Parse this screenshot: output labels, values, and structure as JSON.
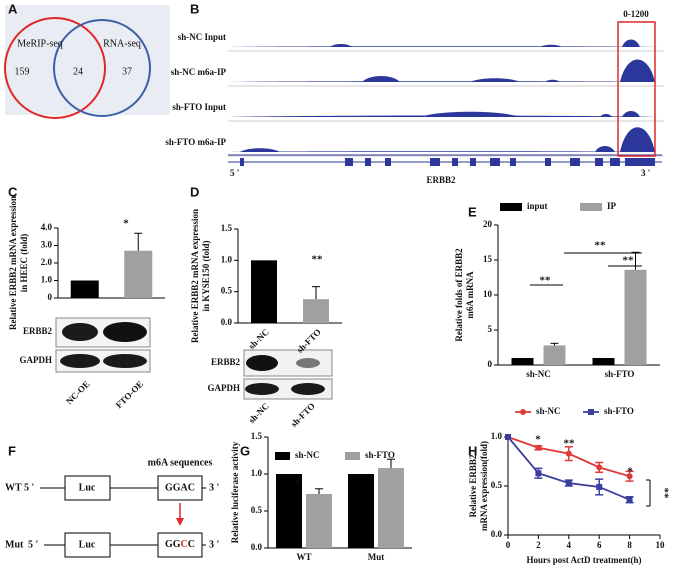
{
  "panel_labels": [
    "A",
    "B",
    "C",
    "D",
    "E",
    "F",
    "G",
    "H"
  ],
  "venn": {
    "sets": [
      "MeRIP-seq",
      "RNA-seq"
    ],
    "counts": [
      159,
      24,
      37
    ]
  },
  "tracks": {
    "labels": [
      "sh-NC  Input",
      "sh-NC  m6a-IP",
      "sh-FTO  Input",
      "sh-FTO  m6a-IP"
    ],
    "scale": "0-1200",
    "gene": "ERBB2",
    "five": "5 '",
    "three": "3 '"
  },
  "blots": {
    "C": {
      "rows": [
        "ERBB2",
        "GAPDH"
      ]
    },
    "D": {
      "rows": [
        "ERBB2",
        "GAPDH"
      ],
      "lanes": [
        "sh-NC",
        "sh-FTO"
      ]
    }
  },
  "diagram": {
    "title": "m6A sequences",
    "rows": [
      {
        "name": "WT",
        "five": "5 '",
        "box1": "Luc",
        "box2": [
          "GGAC"
        ],
        "three": "3 '"
      },
      {
        "name": "Mut",
        "five": "5 '",
        "box1": "Luc",
        "box2": [
          "GG",
          "C",
          "C"
        ],
        "three": "3 '"
      }
    ]
  },
  "chart_data": [
    {
      "type": "bar",
      "categories": [
        "NC-OE",
        "FTO-OE"
      ],
      "values": [
        1.0,
        2.7
      ],
      "errors": [
        null,
        1.0
      ],
      "colors": [
        "#000000",
        "#a0a0a0"
      ],
      "ylabel": [
        "Relative ERBB2 mRNA expression",
        "in HEEC (fold)"
      ],
      "ylim": [
        0,
        4
      ],
      "yticks": [
        0,
        {
          "value": 1,
          "label": "1.0"
        },
        {
          "value": 2,
          "label": "2.0"
        },
        {
          "value": 3,
          "label": "3.0"
        },
        {
          "value": 4,
          "label": "4.0"
        }
      ],
      "annotations": [
        "*"
      ]
    },
    {
      "type": "bar",
      "categories": [
        "sh-NC",
        "sh-FTO"
      ],
      "values": [
        1.0,
        0.38
      ],
      "errors": [
        null,
        0.2
      ],
      "colors": [
        "#000000",
        "#a0a0a0"
      ],
      "ylabel": [
        "Relative ERBB2 mRNA expression",
        "in KYSE150 (fold)"
      ],
      "ylim": [
        0,
        1.5
      ],
      "yticks": [
        {
          "value": 0,
          "label": "0.0"
        },
        0.5,
        {
          "value": 1,
          "label": "1.0"
        },
        1.5
      ],
      "annotations": [
        "**"
      ]
    },
    {
      "type": "bar",
      "categories": [
        "sh-NC",
        "sh-FTO"
      ],
      "series": [
        {
          "name": "input",
          "color": "#000000",
          "values": [
            1,
            1
          ],
          "errors": [
            null,
            null
          ]
        },
        {
          "name": "IP",
          "color": "#a0a0a0",
          "values": [
            2.8,
            13.6
          ],
          "errors": [
            0.3,
            2.5
          ]
        }
      ],
      "ylabel": [
        "Relative folds of ERBB2",
        "m6A mRNA"
      ],
      "ylim": [
        0,
        20
      ],
      "yticks": [
        0,
        5,
        10,
        15,
        20
      ],
      "annotations": [
        "**",
        "**",
        "**"
      ]
    },
    {
      "type": "bar",
      "categories": [
        "WT",
        "Mut"
      ],
      "series": [
        {
          "name": "sh-NC",
          "color": "#000000",
          "values": [
            1,
            1
          ],
          "errors": [
            null,
            null
          ]
        },
        {
          "name": "sh-FTO",
          "color": "#a0a0a0",
          "values": [
            0.73,
            1.08
          ],
          "errors": [
            0.07,
            0.12
          ]
        }
      ],
      "ylabel": [
        "Relative luciferase activity"
      ],
      "ylim": [
        0,
        1.5
      ],
      "yticks": [
        {
          "value": 0,
          "label": "0.0"
        },
        0.5,
        {
          "value": 1,
          "label": "1.0"
        },
        1.5
      ],
      "annotations": [
        "*"
      ]
    },
    {
      "type": "line",
      "x": [
        0,
        2,
        4,
        6,
        8
      ],
      "series": [
        {
          "name": "sh-NC",
          "color": "#e03a3a",
          "values": [
            1.0,
            0.89,
            0.83,
            0.69,
            0.6
          ],
          "errors": [
            null,
            0.02,
            0.07,
            0.05,
            0.05
          ]
        },
        {
          "name": "sh-FTO",
          "color": "#3b3f9e",
          "values": [
            1.0,
            0.63,
            0.53,
            0.49,
            0.36
          ],
          "errors": [
            null,
            0.05,
            0.03,
            0.08,
            0.03
          ]
        }
      ],
      "xlabel": "Hours post ActD treatment(h)",
      "ylabel": [
        "Relative ERBB2",
        "mRNA expression(fold)"
      ],
      "xlim": [
        0,
        10
      ],
      "xticks": [
        0,
        2,
        4,
        6,
        8,
        10
      ],
      "ylim": [
        0,
        1
      ],
      "yticks": [
        {
          "value": 0,
          "label": "0.0"
        },
        0.5,
        {
          "value": 1,
          "label": "1.0"
        }
      ],
      "annotations": [
        "*",
        "**",
        "*",
        "**"
      ]
    }
  ]
}
